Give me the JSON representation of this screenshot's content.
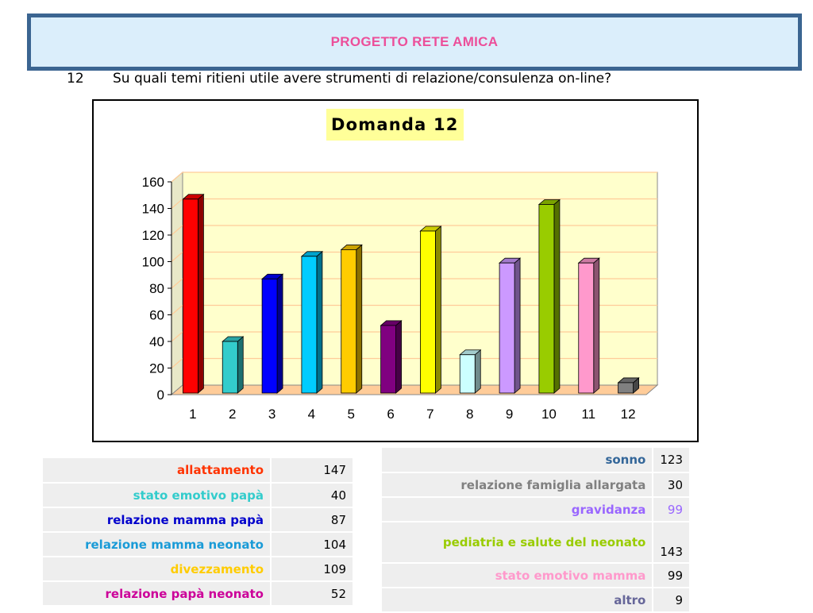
{
  "header": {
    "title": "PROGETTO RETE AMICA"
  },
  "question": {
    "number": "12",
    "text": "Su quali temi ritieni utile avere strumenti di relazione/consulenza on-line?"
  },
  "chart_data": {
    "type": "bar",
    "title": "Domanda 12",
    "categories": [
      "1",
      "2",
      "3",
      "4",
      "5",
      "6",
      "7",
      "8",
      "9",
      "10",
      "11",
      "12"
    ],
    "values": [
      147,
      40,
      87,
      104,
      109,
      52,
      123,
      30,
      99,
      143,
      99,
      9
    ],
    "colors": [
      "#ff0000",
      "#33cccc",
      "#0000ff",
      "#00ccff",
      "#ffcc00",
      "#800080",
      "#ffff00",
      "#ccffff",
      "#cc99ff",
      "#99cc00",
      "#ff99cc",
      "#808080"
    ],
    "yticks": [
      0,
      20,
      40,
      60,
      80,
      100,
      120,
      140,
      160
    ],
    "ylim": [
      0,
      160
    ],
    "grid": true,
    "legend": "none",
    "plot_background": "#ffffcc",
    "floor_color": "#ffcc99",
    "gridline_color": "#ffcc99"
  },
  "table_left": [
    {
      "label": "allattamento",
      "value": "147",
      "color": "#ff3300"
    },
    {
      "label": "stato emotivo papà",
      "value": "40",
      "color": "#33cccc"
    },
    {
      "label": "relazione mamma papà",
      "value": "87",
      "color": "#0000cc"
    },
    {
      "label": "relazione mamma neonato",
      "value": "104",
      "color": "#1a9bd7"
    },
    {
      "label": "divezzamento",
      "value": "109",
      "color": "#ffcc00"
    },
    {
      "label": "relazione papà neonato",
      "value": "52",
      "color": "#cc0099"
    }
  ],
  "table_right": [
    {
      "label": "sonno",
      "value": "123",
      "color": "#336699",
      "value_color": "#000000"
    },
    {
      "label": "relazione famiglia allargata",
      "value": "30",
      "color": "#808080",
      "value_color": "#000000"
    },
    {
      "label": "gravidanza",
      "value": "99",
      "color": "#9966ff",
      "value_color": "#9966ff"
    },
    {
      "label": "pediatria e salute del neonato",
      "value": "143",
      "color": "#99cc00",
      "value_color": "#000000"
    },
    {
      "label": "stato emotivo mamma",
      "value": "99",
      "color": "#ff99cc",
      "value_color": "#000000"
    },
    {
      "label": "altro",
      "value": "9",
      "color": "#666699",
      "value_color": "#000000"
    }
  ]
}
